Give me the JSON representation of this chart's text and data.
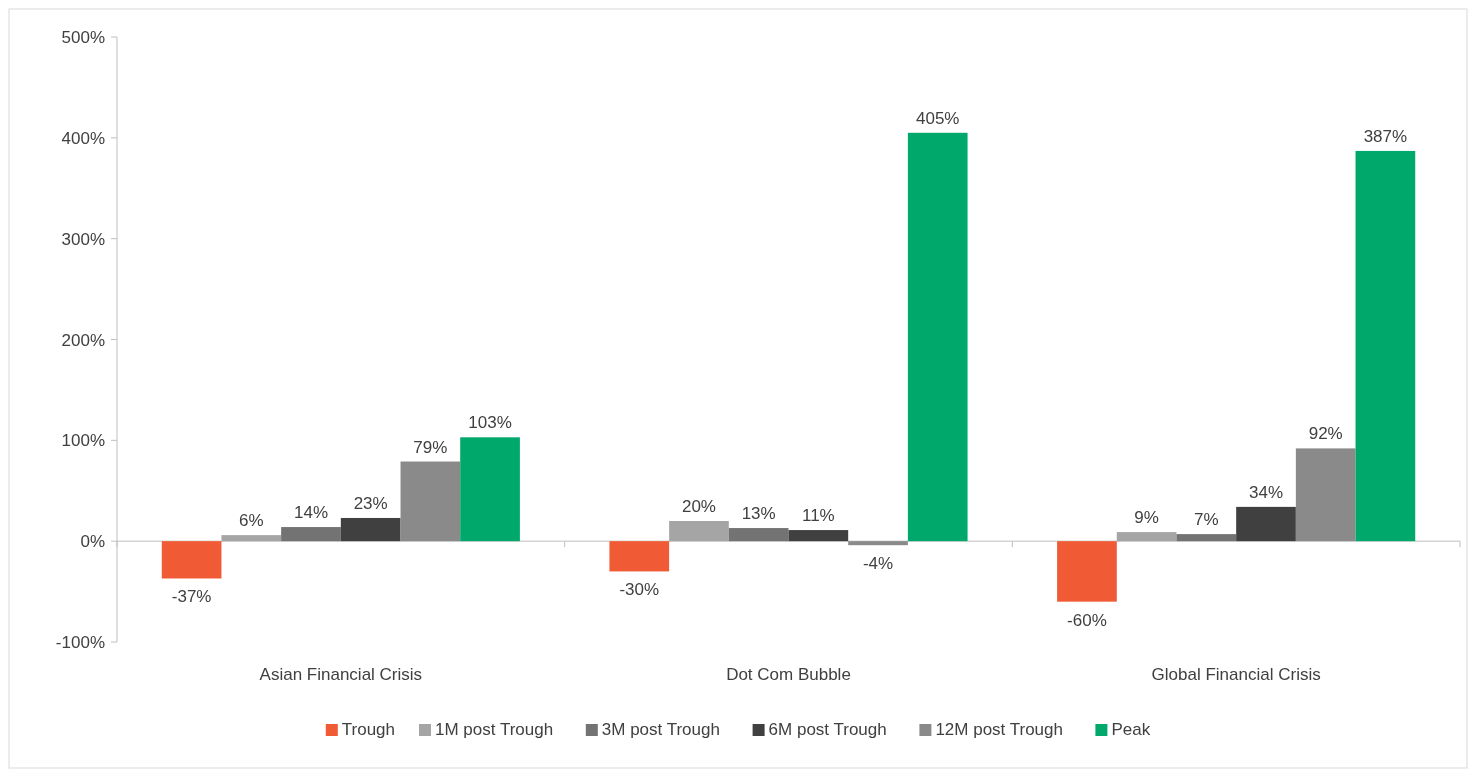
{
  "chart_data": {
    "type": "bar",
    "categories": [
      "Asian Financial Crisis",
      "Dot Com Bubble",
      "Global Financial Crisis"
    ],
    "series": [
      {
        "name": "Trough",
        "color": "#f05a35",
        "values": [
          -37,
          -30,
          -60
        ],
        "value_labels": [
          "-37%",
          "-30%",
          "-60%"
        ]
      },
      {
        "name": "1M post Trough",
        "color": "#a5a5a5",
        "values": [
          6,
          20,
          9
        ],
        "value_labels": [
          "6%",
          "20%",
          "9%"
        ]
      },
      {
        "name": "3M post Trough",
        "color": "#737373",
        "values": [
          14,
          13,
          7
        ],
        "value_labels": [
          "14%",
          "13%",
          "7%"
        ]
      },
      {
        "name": "6M post Trough",
        "color": "#404040",
        "values": [
          23,
          11,
          34
        ],
        "value_labels": [
          "23%",
          "11%",
          "34%"
        ]
      },
      {
        "name": "12M post Trough",
        "color": "#8a8a8a",
        "values": [
          79,
          -4,
          92
        ],
        "value_labels": [
          "79%",
          "-4%",
          "92%"
        ]
      },
      {
        "name": "Peak",
        "color": "#00a86b",
        "values": [
          103,
          405,
          387
        ],
        "value_labels": [
          "103%",
          "405%",
          "387%"
        ]
      }
    ],
    "ylim": [
      -100,
      500
    ],
    "yticks": [
      {
        "value": -100,
        "label": "-100%"
      },
      {
        "value": 0,
        "label": "0%"
      },
      {
        "value": 100,
        "label": "100%"
      },
      {
        "value": 200,
        "label": "200%"
      },
      {
        "value": 300,
        "label": "300%"
      },
      {
        "value": 400,
        "label": "400%"
      },
      {
        "value": 500,
        "label": "500%"
      }
    ],
    "legend": "bottom"
  }
}
